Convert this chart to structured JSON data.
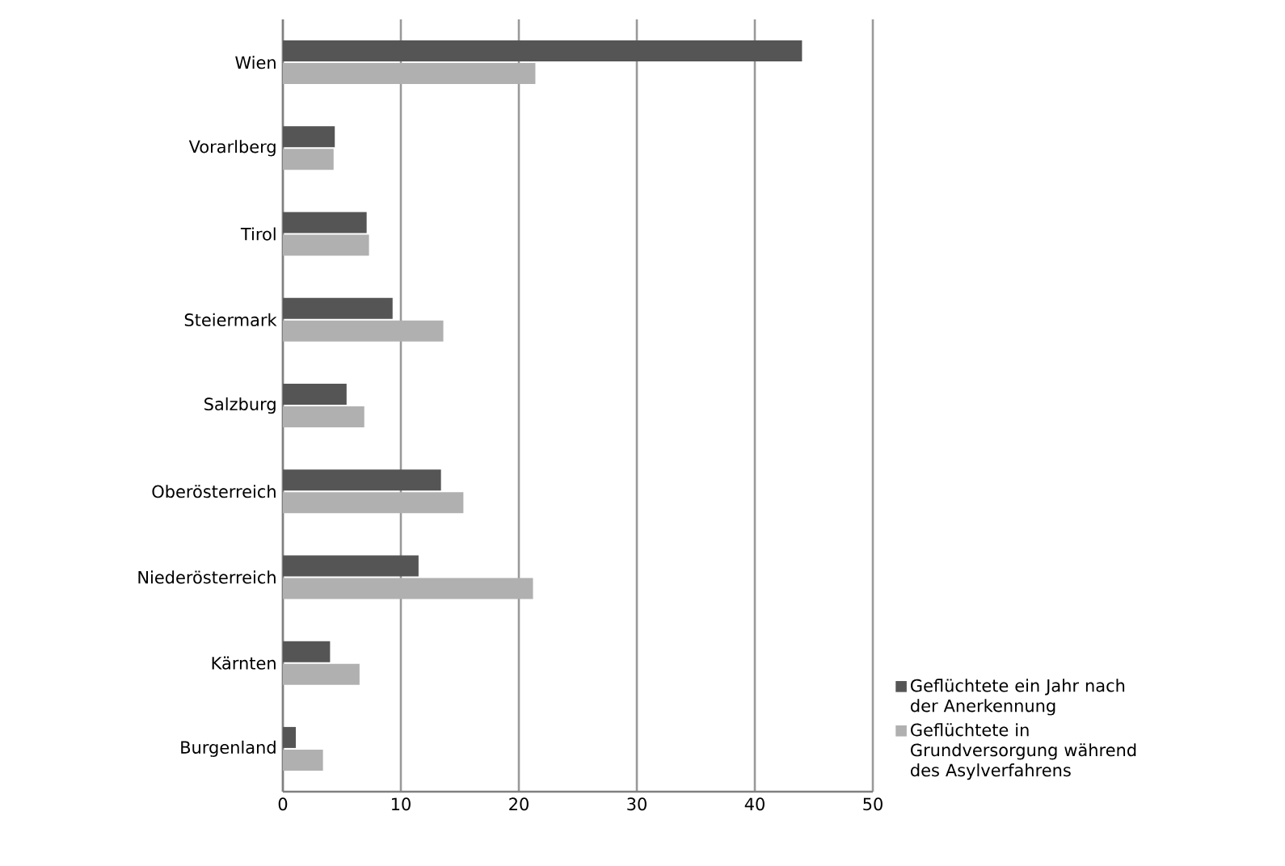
{
  "chart_data": {
    "type": "bar",
    "orientation": "horizontal",
    "categories": [
      "Wien",
      "Vorarlberg",
      "Tirol",
      "Steiermark",
      "Salzburg",
      "Oberösterreich",
      "Niederösterreich",
      "Kärnten",
      "Burgenland"
    ],
    "series": [
      {
        "name": "Geflüchtete ein Jahr nach der Anerkennung",
        "color": "#555555",
        "values": [
          44.0,
          4.4,
          7.1,
          9.3,
          5.4,
          13.4,
          11.5,
          4.0,
          1.1
        ]
      },
      {
        "name": "Geflüchtete in Grundversorgung während des Asylverfahrens",
        "color": "#b0b0b0",
        "values": [
          21.4,
          4.3,
          7.3,
          13.6,
          6.9,
          15.3,
          21.2,
          6.5,
          3.4
        ]
      }
    ],
    "xlim": [
      0,
      50
    ],
    "xticks": [
      0,
      10,
      20,
      30,
      40,
      50
    ],
    "grid": "x",
    "legend": "right"
  }
}
